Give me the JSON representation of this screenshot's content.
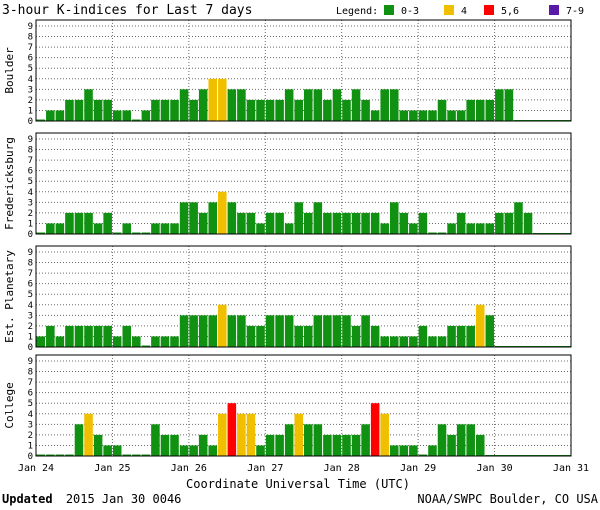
{
  "chart_data": {
    "type": "bar",
    "title": "3-hour K-indices for Last 7 days",
    "legend": {
      "label": "Legend:",
      "position": "top-right",
      "items": [
        {
          "label": "0-3",
          "color": "#119111"
        },
        {
          "label": "4",
          "color": "#f0c000"
        },
        {
          "label": "5,6",
          "color": "#ff0000"
        },
        {
          "label": "7-9",
          "color": "#5a1aa8"
        }
      ]
    },
    "colors": {
      "low": "#119111",
      "four": "#f0c000",
      "storm": "#ff0000",
      "severe": "#5a1aa8",
      "gridline": "#6b6b6b",
      "frame": "#000000"
    },
    "xlabel": "Coordinate Universal Time (UTC)",
    "x_ticks": [
      "Jan 24",
      "Jan 25",
      "Jan 26",
      "Jan 27",
      "Jan 28",
      "Jan 29",
      "Jan 30",
      "Jan 31"
    ],
    "ylim": [
      0,
      9
    ],
    "y_ticks": [
      "0",
      "1",
      "2",
      "3",
      "4",
      "5",
      "6",
      "7",
      "8",
      "9"
    ],
    "slots_per_day": 8,
    "days": 7,
    "series": [
      {
        "name": "Boulder",
        "values": [
          0,
          1,
          1,
          2,
          2,
          3,
          2,
          2,
          1,
          1,
          0,
          1,
          2,
          2,
          2,
          3,
          2,
          3,
          4,
          4,
          3,
          3,
          2,
          2,
          2,
          2,
          3,
          2,
          3,
          3,
          2,
          3,
          2,
          3,
          2,
          1,
          3,
          3,
          1,
          1,
          1,
          1,
          2,
          1,
          1,
          2,
          2,
          2,
          3,
          3
        ]
      },
      {
        "name": "Fredericksburg",
        "values": [
          0,
          1,
          1,
          2,
          2,
          2,
          1,
          2,
          0,
          1,
          0,
          0,
          1,
          1,
          1,
          3,
          3,
          2,
          3,
          4,
          3,
          2,
          2,
          1,
          2,
          2,
          1,
          3,
          2,
          3,
          2,
          2,
          2,
          2,
          2,
          2,
          1,
          3,
          2,
          1,
          2,
          0,
          0,
          1,
          2,
          1,
          1,
          1,
          2,
          2,
          3,
          2
        ]
      },
      {
        "name": "Est. Planetary",
        "values": [
          1,
          2,
          1,
          2,
          2,
          2,
          2,
          2,
          1,
          2,
          1,
          0,
          1,
          1,
          1,
          3,
          3,
          3,
          3,
          4,
          3,
          3,
          2,
          2,
          3,
          3,
          3,
          2,
          2,
          3,
          3,
          3,
          3,
          2,
          3,
          2,
          1,
          1,
          1,
          1,
          2,
          1,
          1,
          2,
          2,
          2,
          4,
          3
        ]
      },
      {
        "name": "College",
        "values": [
          0,
          0,
          0,
          0,
          3,
          4,
          2,
          1,
          1,
          0,
          0,
          0,
          3,
          2,
          2,
          1,
          1,
          2,
          1,
          4,
          5,
          4,
          4,
          1,
          2,
          2,
          3,
          4,
          3,
          3,
          2,
          2,
          2,
          2,
          3,
          5,
          4,
          1,
          1,
          1,
          0,
          1,
          3,
          2,
          3,
          3,
          2
        ]
      }
    ]
  },
  "footer": {
    "updated_label": "Updated",
    "updated_value": "2015 Jan 30 0046",
    "source": "NOAA/SWPC Boulder, CO USA"
  }
}
